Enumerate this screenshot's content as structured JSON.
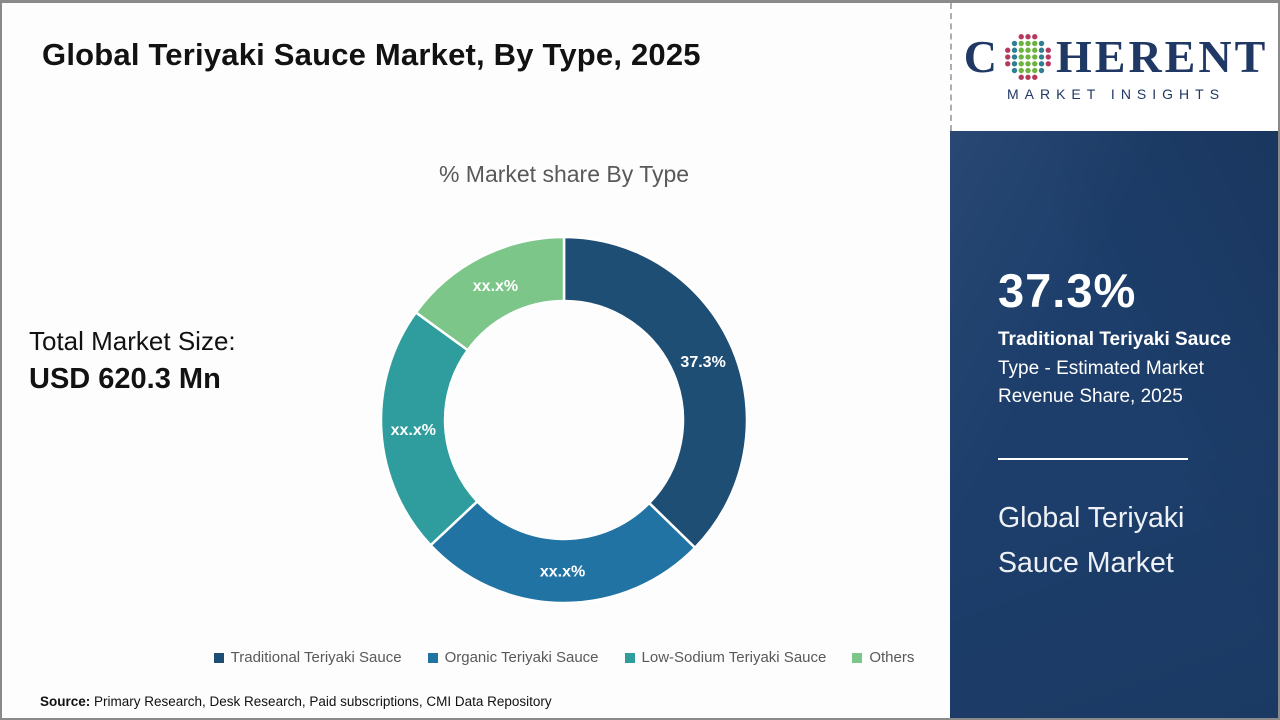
{
  "header": {
    "title": "Global Teriyaki Sauce Market, By Type, 2025"
  },
  "brand": {
    "name_c": "C",
    "name_rest": "HERENT",
    "tagline": "MARKET INSIGHTS",
    "navy": "#1f3864",
    "dot_colors": {
      "crimson": "#b53a5e",
      "teal": "#2e7f93",
      "green": "#6cb33f"
    }
  },
  "chart_data": {
    "type": "pie",
    "subtype": "donut",
    "title": "% Market share By Type",
    "inner_radius_ratio": 0.65,
    "start_angle_deg": 0,
    "direction": "clockwise",
    "legend_position": "bottom",
    "slices": [
      {
        "label": "Traditional Teriyaki Sauce",
        "value": 37.3,
        "display": "37.3%",
        "color": "#1f4e74"
      },
      {
        "label": "Organic Teriyaki Sauce",
        "value": 25.7,
        "display": "xx.x%",
        "color": "#2173a4"
      },
      {
        "label": "Low-Sodium Teriyaki Sauce",
        "value": 22.0,
        "display": "xx.x%",
        "color": "#2f9d9d"
      },
      {
        "label": "Others",
        "value": 15.0,
        "display": "xx.x%",
        "color": "#7cc689"
      }
    ]
  },
  "stats": {
    "total_label": "Total Market Size:",
    "total_value": "USD 620.3 Mn"
  },
  "panel": {
    "bg_color": "#1d3e6b",
    "share_value": "37.3%",
    "share_bold": "Traditional Teriyaki Sauce",
    "share_rest": " Type - Estimated Market Revenue Share, 2025",
    "report_title": "Global Teriyaki Sauce Market"
  },
  "footer": {
    "source_label": "Source:",
    "source_text": " Primary Research, Desk Research, Paid subscriptions, CMI Data Repository"
  }
}
